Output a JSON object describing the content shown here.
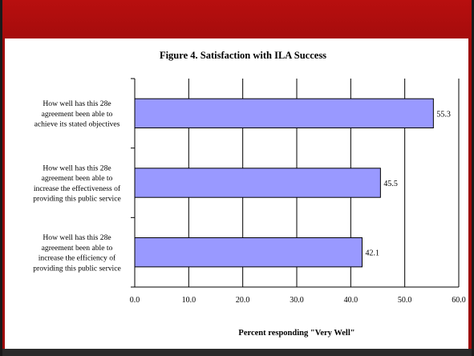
{
  "chart_data": {
    "type": "bar",
    "orientation": "horizontal",
    "title": "Figure 4. Satisfaction with ILA Success",
    "xlabel": "Percent responding \"Very Well\"",
    "ylabel": "",
    "xlim": [
      0,
      60
    ],
    "xticks": [
      "0.0",
      "10.0",
      "20.0",
      "30.0",
      "40.0",
      "50.0",
      "60.0"
    ],
    "grid": true,
    "categories": [
      [
        "How well has this 28e",
        "agreement been able to",
        "achieve its stated objectives"
      ],
      [
        "How well has this 28e",
        "agreement been able to",
        "increase the effectiveness of",
        "providing this public service"
      ],
      [
        "How well has this 28e",
        "agreement been able to",
        "increase the efficiency of",
        "providing this public service"
      ]
    ],
    "values": [
      55.3,
      45.5,
      42.1
    ],
    "data_labels": [
      "55.3",
      "45.5",
      "42.1"
    ],
    "bar_color": "#9999ff"
  }
}
